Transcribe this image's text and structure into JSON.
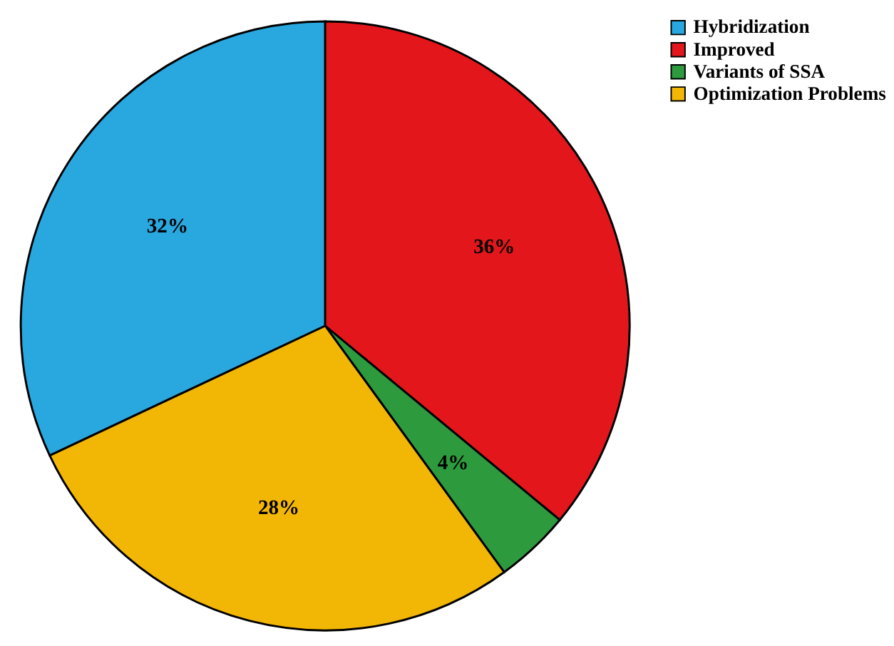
{
  "chart_data": {
    "type": "pie",
    "categories": [
      "Hybridization",
      "Improved",
      "Variants of SSA",
      "Optimization Problems"
    ],
    "values": [
      32,
      36,
      4,
      28
    ],
    "colors": [
      "#29a8e0",
      "#e3171b",
      "#2e9a3e",
      "#f2b705"
    ],
    "value_labels": [
      "32%",
      "36%",
      "4%",
      "28%"
    ],
    "legend": "right"
  }
}
